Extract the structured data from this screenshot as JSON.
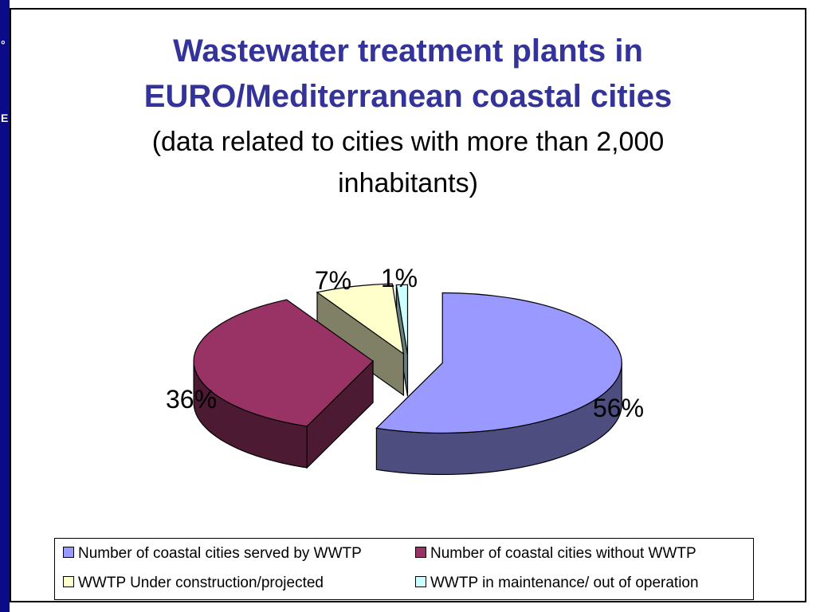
{
  "title_line1": "Wastewater treatment plants in",
  "title_line2": "EURO/Mediterranean coastal cities",
  "subtitle_line1": "(data related to cities with more than 2,000",
  "subtitle_line2": "inhabitants)",
  "colors": {
    "band": "#0b0b8a",
    "title": "#333399"
  },
  "chart_data": {
    "type": "pie",
    "title": "Wastewater treatment plants in EURO/Mediterranean coastal cities",
    "subtitle": "(data related to cities with more than 2,000 inhabitants)",
    "three_d": true,
    "exploded": true,
    "legend_position": "bottom",
    "slices": [
      {
        "label": "Number of coastal cities served by WWTP",
        "value": 56,
        "display": "56%",
        "color": "#9999ff",
        "side_color": "#4d4d80"
      },
      {
        "label": "Number of coastal cities without WWTP",
        "value": 36,
        "display": "36%",
        "color": "#993366",
        "side_color": "#4d1a33"
      },
      {
        "label": "WWTP Under construction/projected",
        "value": 7,
        "display": "7%",
        "color": "#ffffcc",
        "side_color": "#808066"
      },
      {
        "label": "WWTP in maintenance/ out of operation",
        "value": 1,
        "display": "1%",
        "color": "#ccffff",
        "side_color": "#668080"
      }
    ]
  }
}
